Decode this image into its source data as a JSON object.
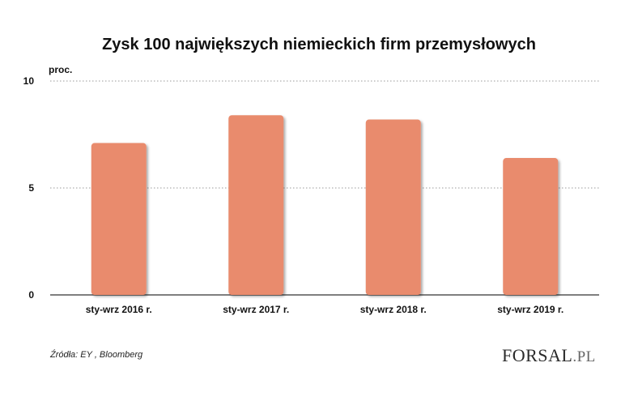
{
  "chart_data": {
    "type": "bar",
    "title": "Zysk 100 największych niemieckich firm przemysłowych",
    "ylabel": "proc.",
    "xlabel": "",
    "categories": [
      "sty-wrz 2016 r.",
      "sty-wrz 2017 r.",
      "sty-wrz 2018 r.",
      "sty-wrz 2019 r."
    ],
    "values": [
      7.1,
      8.4,
      8.2,
      6.4
    ],
    "ylim": [
      0,
      10
    ],
    "yticks": [
      0,
      5,
      10
    ],
    "grid": true,
    "bar_color": "#e98b6d"
  },
  "source": "Źródła: EY , Bloomberg",
  "logo": {
    "main": "FORSAL",
    "suffix": ".PL"
  }
}
